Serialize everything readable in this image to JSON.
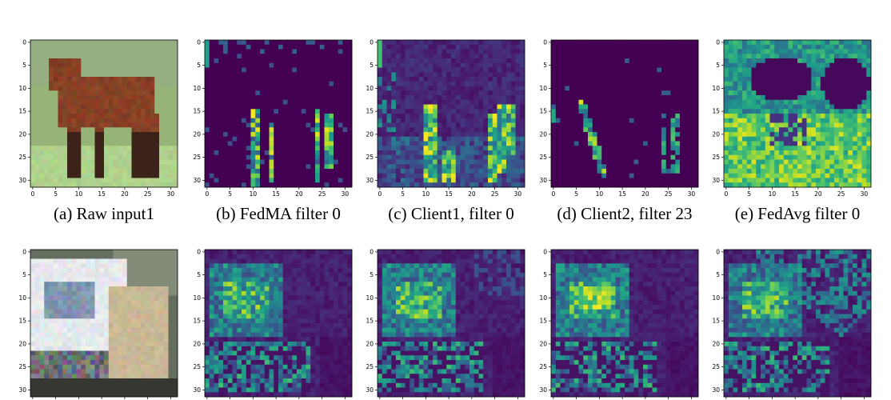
{
  "figure": {
    "captions": [
      "(a)  Raw input1",
      "(b)  FedMA filter 0",
      "(c)  Client1, filter 0",
      "(d)  Client2, filter 23",
      "(e)  FedAvg filter 0"
    ],
    "rows": [
      {
        "panels": [
          {
            "kind": "image",
            "subject": "horse"
          },
          {
            "kind": "heatmap",
            "pattern": "sparse_legs"
          },
          {
            "kind": "heatmap",
            "pattern": "dense_legs"
          },
          {
            "kind": "heatmap",
            "pattern": "sparse_legs_2"
          },
          {
            "kind": "heatmap",
            "pattern": "background"
          }
        ]
      },
      {
        "panels": [
          {
            "kind": "image",
            "subject": "truck"
          },
          {
            "kind": "heatmap",
            "pattern": "truck_a"
          },
          {
            "kind": "heatmap",
            "pattern": "truck_b"
          },
          {
            "kind": "heatmap",
            "pattern": "truck_c"
          },
          {
            "kind": "heatmap",
            "pattern": "truck_d"
          }
        ]
      }
    ],
    "axis": {
      "x_ticks": [
        "0",
        "5",
        "10",
        "15",
        "20",
        "25",
        "30"
      ],
      "y_ticks": [
        "0",
        "5",
        "10",
        "15",
        "20",
        "25",
        "30"
      ]
    },
    "colors": {
      "viridis_low": "#440154",
      "viridis_mid": "#21918c",
      "viridis_high": "#fde725"
    }
  }
}
